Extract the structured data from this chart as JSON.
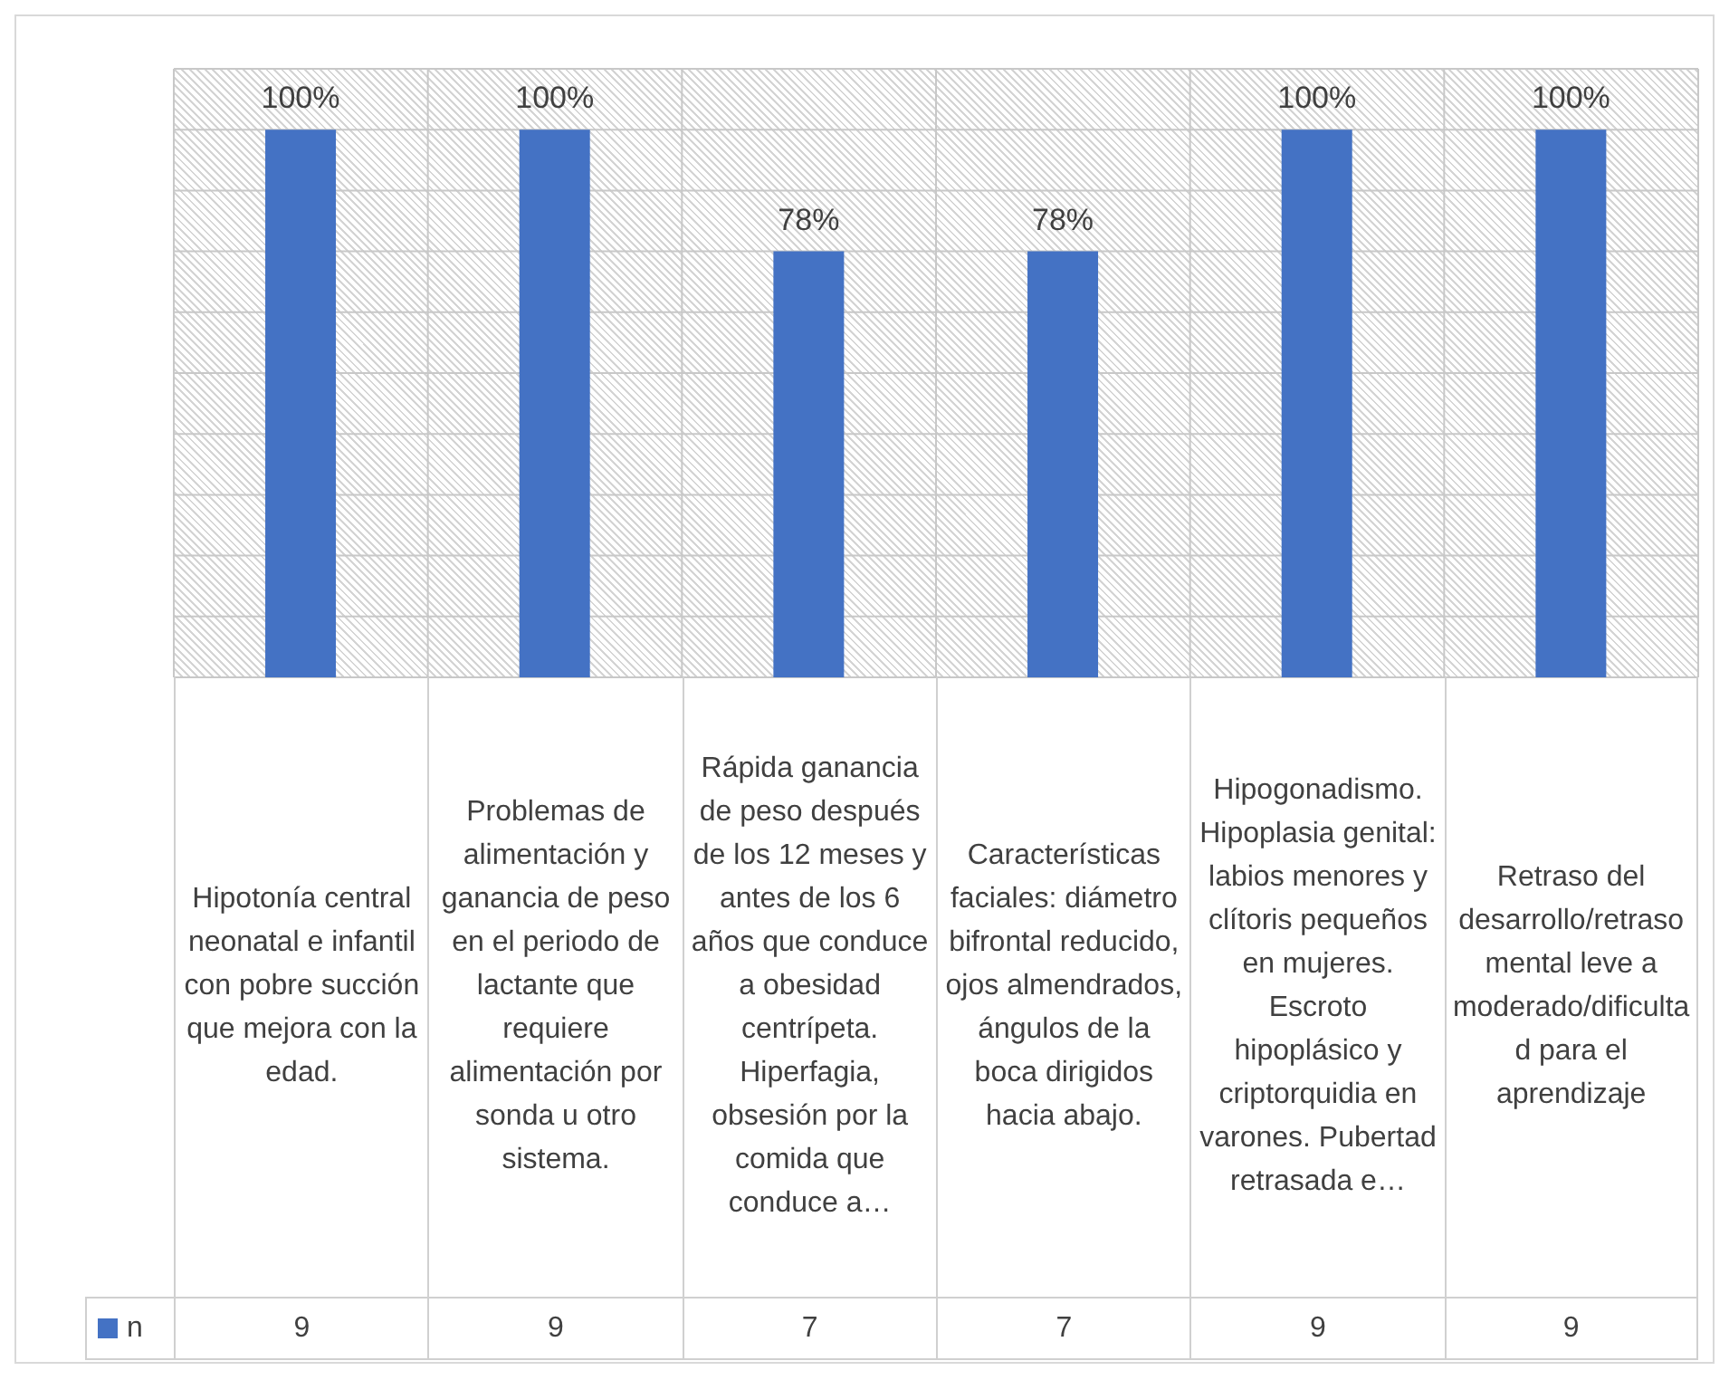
{
  "chart_data": {
    "type": "bar",
    "categories": [
      "Hipotonía central neonatal e infantil con pobre succión que mejora con la edad.",
      "Problemas de alimentación y ganancia de peso en el periodo de lactante que requiere alimentación por sonda u otro sistema.",
      "Rápida ganancia de peso después de los 12 meses y antes de los 6 años que conduce a obesidad centrípeta. Hiperfagia, obsesión por la comida que conduce a…",
      "Características faciales: diámetro bifrontal reducido, ojos almendrados, ángulos de la boca dirigidos hacia abajo.",
      "Hipogonadismo. Hipoplasia genital: labios menores y clítoris pequeños en mujeres. Escroto hipoplásico y criptorquidia en varones. Pubertad retrasada e…",
      "Retraso del desarrollo/retraso mental leve a moderado/dificultad para el aprendizaje"
    ],
    "series": [
      {
        "name": "n",
        "color": "#4472c4",
        "values": [
          9,
          9,
          7,
          7,
          9,
          9
        ]
      }
    ],
    "annotations": [
      {
        "text": "100%",
        "x": "Hipotonía central neonatal e infantil con pobre succión que mejora con la edad.",
        "y": 9
      },
      {
        "text": "100%",
        "x": "Problemas de alimentación y ganancia de peso en el periodo de lactante que requiere alimentación por sonda u otro sistema.",
        "y": 9
      },
      {
        "text": "78%",
        "x": "Rápida ganancia de peso después de los 12 meses y antes de los 6 años que conduce a obesidad centrípeta. Hiperfagia, obsesión por la comida que conduce a…",
        "y": 7
      },
      {
        "text": "78%",
        "x": "Características faciales: diámetro bifrontal reducido, ojos almendrados, ángulos de la boca dirigidos hacia abajo.",
        "y": 7
      },
      {
        "text": "100%",
        "x": "Hipogonadismo. Hipoplasia genital: labios menores y clítoris pequeños en mujeres. Escroto hipoplásico y criptorquidia en varones. Pubertad retrasada e…",
        "y": 9
      },
      {
        "text": "100%",
        "x": "Retraso del desarrollo/retraso mental leve a moderado/dificultad para el aprendizaje",
        "y": 9
      }
    ],
    "ylim": [
      0,
      10
    ],
    "yticks": [
      {
        "value": 0,
        "label": null
      },
      {
        "value": 1,
        "label": null
      },
      {
        "value": 2,
        "label": null
      },
      {
        "value": 3,
        "label": null
      },
      {
        "value": 4,
        "label": null
      },
      {
        "value": 5,
        "label": null
      },
      {
        "value": 6,
        "label": null
      },
      {
        "value": 7,
        "label": null
      },
      {
        "value": 8,
        "label": null
      },
      {
        "value": 9,
        "label": null
      },
      {
        "value": 10,
        "label": null
      }
    ],
    "tick_labels": false,
    "grid": true,
    "data_labels": true,
    "legend": "bottom left"
  }
}
